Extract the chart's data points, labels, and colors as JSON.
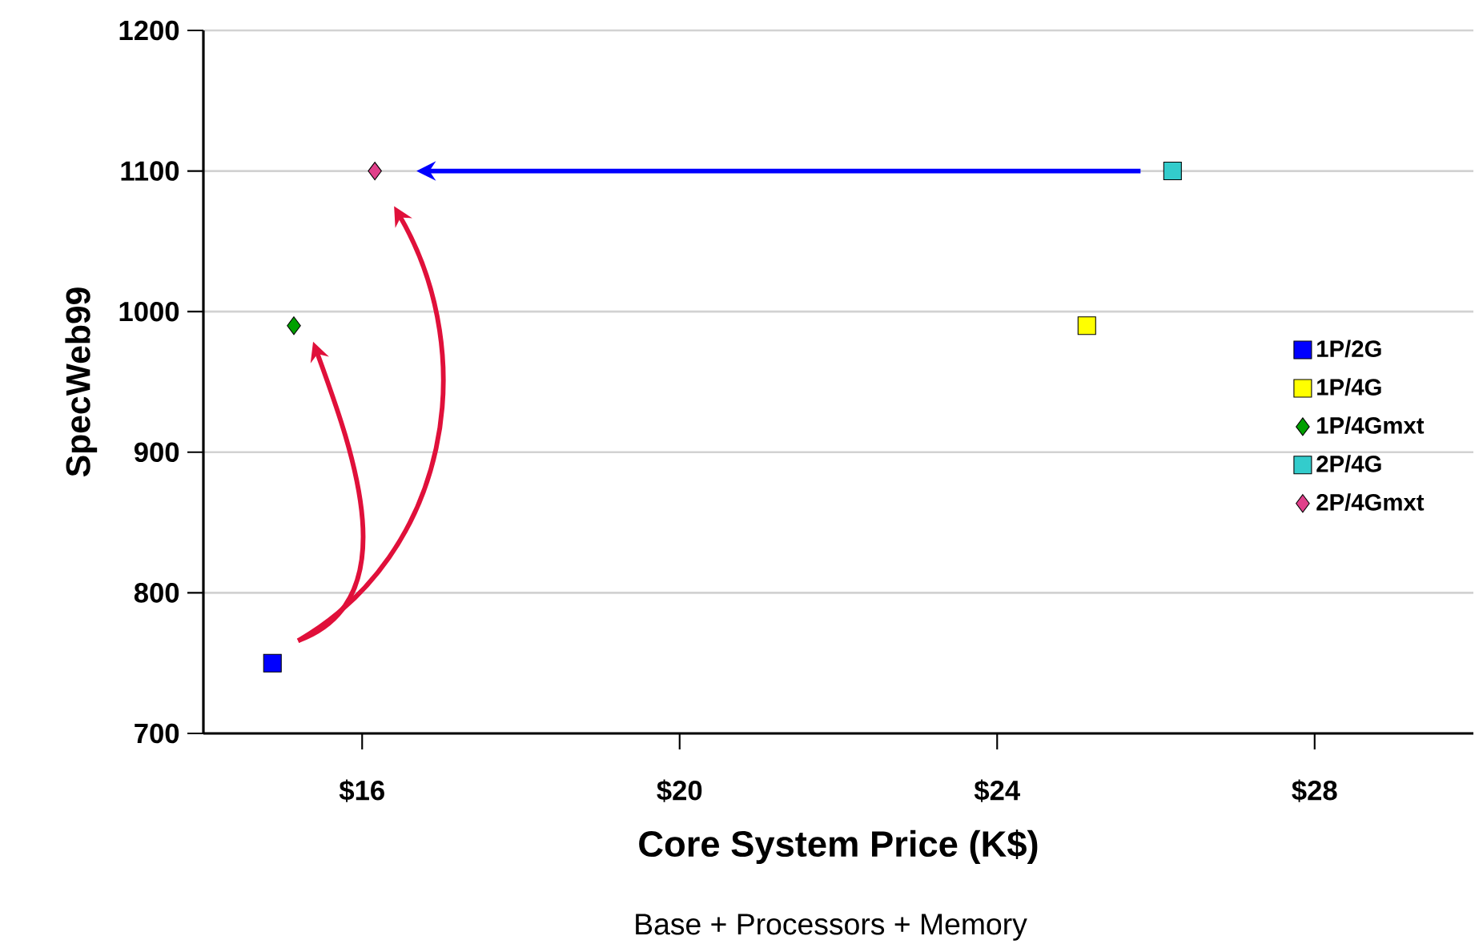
{
  "chart_data": {
    "type": "scatter",
    "xlabel": "Core System Price  (K$)",
    "ylabel": "SpecWeb99",
    "annotations": [
      "Base + Processors + Memory"
    ],
    "xlim": [
      14,
      30
    ],
    "ylim": [
      700,
      1200
    ],
    "xticks": [
      {
        "value": 16,
        "label": "$16"
      },
      {
        "value": 20,
        "label": "$20"
      },
      {
        "value": 24,
        "label": "$24"
      },
      {
        "value": 28,
        "label": "$28"
      }
    ],
    "yticks": [
      700,
      800,
      900,
      1000,
      1100,
      1200
    ],
    "grid": "y",
    "legend": "right",
    "series": [
      {
        "name": "1P/2G",
        "color": "#0000ff",
        "marker": "square",
        "x": [
          14.87
        ],
        "values": [
          750
        ]
      },
      {
        "name": "1P/4G",
        "color": "#ffff00",
        "marker": "square",
        "x": [
          25.13
        ],
        "values": [
          990
        ]
      },
      {
        "name": "1P/4Gmxt",
        "color": "#00a000",
        "marker": "diamond",
        "x": [
          15.14
        ],
        "values": [
          990
        ]
      },
      {
        "name": "2P/4G",
        "color": "#33cccc",
        "marker": "square",
        "x": [
          26.21
        ],
        "values": [
          1100
        ]
      },
      {
        "name": "2P/4Gmxt",
        "color": "#e0408a",
        "marker": "diamond",
        "x": [
          16.16
        ],
        "values": [
          1100
        ]
      }
    ]
  }
}
